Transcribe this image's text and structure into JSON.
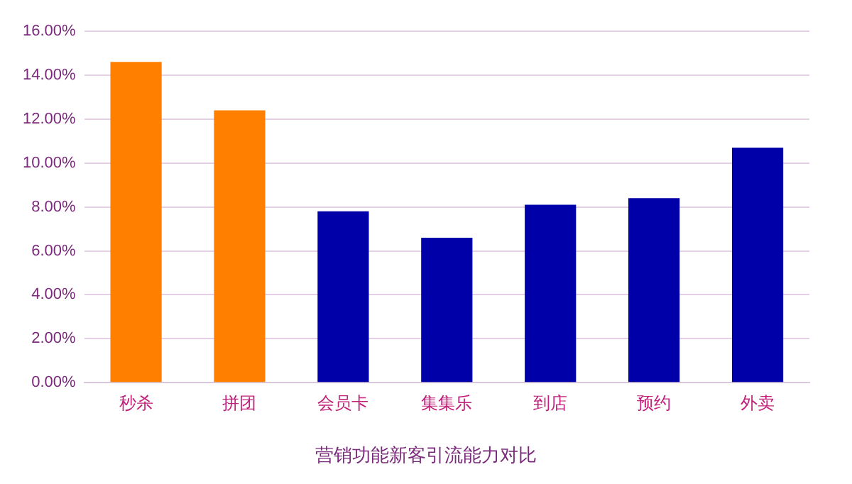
{
  "chart_data": {
    "type": "bar",
    "title": "营销功能新客引流能力对比",
    "categories": [
      "秒杀",
      "拼团",
      "会员卡",
      "集集乐",
      "到店",
      "预约",
      "外卖"
    ],
    "values": [
      14.6,
      12.4,
      7.8,
      6.6,
      8.1,
      8.4,
      10.7
    ],
    "colors": [
      "#ff8000",
      "#ff8000",
      "#0000a8",
      "#0000a8",
      "#0000a8",
      "#0000a8",
      "#0000a8"
    ],
    "ylim": [
      0,
      16
    ],
    "yticks": [
      {
        "value": 0,
        "label": "0.00%"
      },
      {
        "value": 2,
        "label": "2.00%"
      },
      {
        "value": 4,
        "label": "4.00%"
      },
      {
        "value": 6,
        "label": "6.00%"
      },
      {
        "value": 8,
        "label": "8.00%"
      },
      {
        "value": 10,
        "label": "10.00%"
      },
      {
        "value": 12,
        "label": "12.00%"
      },
      {
        "value": 14,
        "label": "14.00%"
      },
      {
        "value": 16,
        "label": "16.00%"
      }
    ],
    "grid": "y",
    "legend": false
  }
}
